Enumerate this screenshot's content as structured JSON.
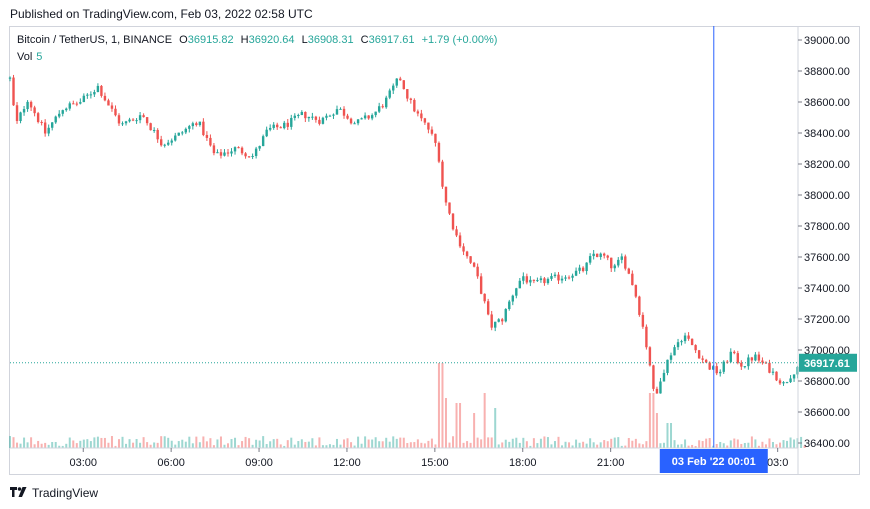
{
  "published_text": "Published on TradingView.com, Feb 03, 2022 02:58 UTC",
  "footer_brand": "TradingView",
  "legend": {
    "symbol": "Bitcoin / TetherUS, 1, BINANCE",
    "open_label": "O",
    "open": "36915.82",
    "high_label": "H",
    "high": "36920.64",
    "low_label": "L",
    "low": "36908.31",
    "close_label": "C",
    "close": "36917.61",
    "change": "+1.79 (+0.00%)",
    "vol_label": "Vol",
    "vol_value": "5"
  },
  "colors": {
    "up": "#26a69a",
    "down": "#ef5350",
    "crosshair": "#2962ff",
    "price_label_bg": "#26a69a"
  },
  "chart_data": {
    "type": "candlestick",
    "timeframe": "1 minute",
    "x_tick_labels": [
      "03:00",
      "06:00",
      "09:00",
      "12:00",
      "15:00",
      "18:00",
      "21:00",
      "03:0"
    ],
    "crosshair_time_label": "03 Feb '22    00:01",
    "last_price_label": "36917.61",
    "y_tick_labels": [
      "39000.00",
      "38800.00",
      "38600.00",
      "38400.00",
      "38200.00",
      "38000.00",
      "37800.00",
      "37600.00",
      "37400.00",
      "37200.00",
      "37000.00",
      "36800.00",
      "36600.00",
      "36400.00"
    ],
    "ylim": [
      36400,
      39000
    ],
    "close_path_hours_price": [
      [
        0.0,
        38750
      ],
      [
        0.2,
        38450
      ],
      [
        0.6,
        38620
      ],
      [
        1.2,
        38400
      ],
      [
        1.8,
        38560
      ],
      [
        2.4,
        38600
      ],
      [
        3.0,
        38700
      ],
      [
        3.3,
        38600
      ],
      [
        3.8,
        38450
      ],
      [
        4.5,
        38520
      ],
      [
        5.2,
        38330
      ],
      [
        5.7,
        38380
      ],
      [
        6.4,
        38480
      ],
      [
        7.0,
        38250
      ],
      [
        7.7,
        38300
      ],
      [
        8.3,
        38250
      ],
      [
        8.8,
        38420
      ],
      [
        9.4,
        38450
      ],
      [
        10.0,
        38520
      ],
      [
        10.6,
        38480
      ],
      [
        11.2,
        38560
      ],
      [
        11.8,
        38460
      ],
      [
        12.4,
        38520
      ],
      [
        12.8,
        38600
      ],
      [
        13.3,
        38760
      ],
      [
        13.6,
        38620
      ],
      [
        13.9,
        38520
      ],
      [
        14.3,
        38420
      ],
      [
        14.6,
        38300
      ],
      [
        14.8,
        38000
      ],
      [
        15.2,
        37750
      ],
      [
        15.6,
        37600
      ],
      [
        15.9,
        37500
      ],
      [
        16.2,
        37300
      ],
      [
        16.4,
        37150
      ],
      [
        16.8,
        37200
      ],
      [
        17.2,
        37380
      ],
      [
        17.5,
        37480
      ],
      [
        17.8,
        37420
      ],
      [
        18.3,
        37450
      ],
      [
        18.8,
        37470
      ],
      [
        19.3,
        37500
      ],
      [
        19.6,
        37520
      ],
      [
        19.9,
        37620
      ],
      [
        20.3,
        37600
      ],
      [
        20.6,
        37520
      ],
      [
        20.9,
        37600
      ],
      [
        21.3,
        37400
      ],
      [
        21.6,
        37150
      ],
      [
        21.9,
        36850
      ],
      [
        22.0,
        36650
      ],
      [
        22.2,
        36820
      ],
      [
        22.6,
        37000
      ],
      [
        23.0,
        37100
      ],
      [
        23.4,
        37000
      ],
      [
        23.8,
        36900
      ],
      [
        24.2,
        36850
      ],
      [
        24.6,
        36980
      ],
      [
        25.0,
        36900
      ],
      [
        25.4,
        36960
      ],
      [
        25.9,
        36880
      ],
      [
        26.4,
        36780
      ],
      [
        26.9,
        36900
      ],
      [
        27.2,
        36917
      ]
    ],
    "volume_spike_hours": [
      [
        14.7,
        0.85
      ],
      [
        14.9,
        0.5
      ],
      [
        15.3,
        0.45
      ],
      [
        15.8,
        0.35
      ],
      [
        16.2,
        0.55
      ],
      [
        16.6,
        0.4
      ],
      [
        21.9,
        0.55
      ],
      [
        22.1,
        0.35
      ],
      [
        22.5,
        0.25
      ]
    ]
  }
}
